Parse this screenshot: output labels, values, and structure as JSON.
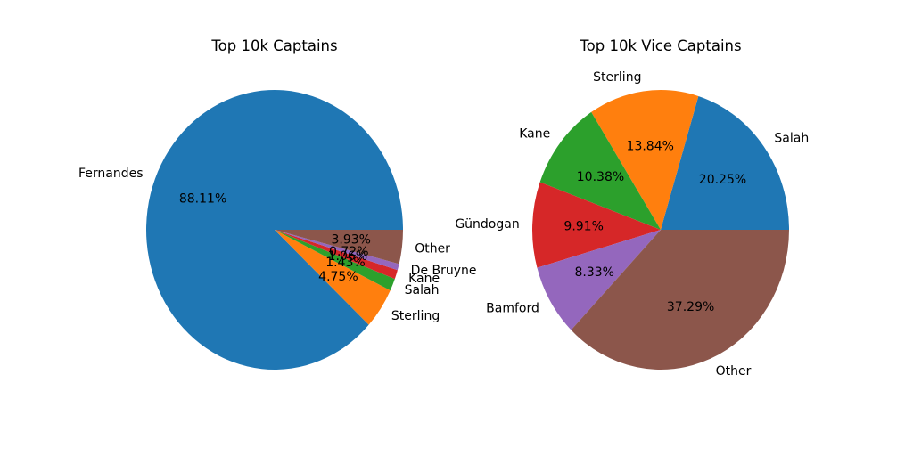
{
  "chart_data": [
    {
      "type": "pie",
      "title": "Top 10k Captains",
      "start_angle": 0,
      "direction": "counterclockwise",
      "slices": [
        {
          "label": "Fernandes",
          "value": 88.11,
          "pct_text": "88.11%",
          "color": "#1f77b4"
        },
        {
          "label": "Sterling",
          "value": 4.75,
          "pct_text": "4.75%",
          "color": "#ff7f0e"
        },
        {
          "label": "Salah",
          "value": 1.43,
          "pct_text": "1.43%",
          "color": "#2ca02c"
        },
        {
          "label": "Kane",
          "value": 1.06,
          "pct_text": "1.06%",
          "color": "#d62728"
        },
        {
          "label": "De Bruyne",
          "value": 0.72,
          "pct_text": "0.72%",
          "color": "#9467bd"
        },
        {
          "label": "Other",
          "value": 3.93,
          "pct_text": "3.93%",
          "color": "#8c564b"
        }
      ]
    },
    {
      "type": "pie",
      "title": "Top 10k Vice Captains",
      "start_angle": 0,
      "direction": "counterclockwise",
      "slices": [
        {
          "label": "Salah",
          "value": 20.25,
          "pct_text": "20.25%",
          "color": "#1f77b4"
        },
        {
          "label": "Sterling",
          "value": 13.84,
          "pct_text": "13.84%",
          "color": "#ff7f0e"
        },
        {
          "label": "Kane",
          "value": 10.38,
          "pct_text": "10.38%",
          "color": "#2ca02c"
        },
        {
          "label": "Gündogan",
          "value": 9.91,
          "pct_text": "9.91%",
          "color": "#d62728"
        },
        {
          "label": "Bamford",
          "value": 8.33,
          "pct_text": "8.33%",
          "color": "#9467bd"
        },
        {
          "label": "Other",
          "value": 37.29,
          "pct_text": "37.29%",
          "color": "#8c564b"
        }
      ]
    }
  ]
}
